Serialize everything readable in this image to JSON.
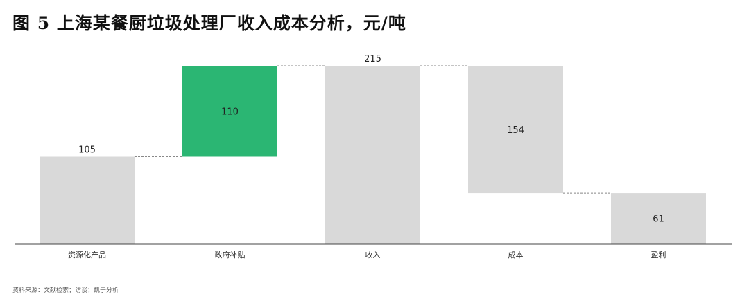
{
  "title": "图 5 上海某餐厨垃圾处理厂收入成本分析，元/吨",
  "source": "资料来源：文献检索；访谈；凯于分析",
  "chart_data": {
    "type": "waterfall",
    "categories": [
      "资源化产品",
      "政府补贴",
      "收入",
      "成本",
      "盈利"
    ],
    "values": [
      105,
      110,
      215,
      154,
      61
    ],
    "bars": [
      {
        "start": 0,
        "end": 105,
        "label": "105",
        "label_pos": "above",
        "color": "#d9d9d9"
      },
      {
        "start": 105,
        "end": 215,
        "label": "110",
        "label_pos": "inside",
        "color": "#2bb673"
      },
      {
        "start": 0,
        "end": 215,
        "label": "215",
        "label_pos": "above",
        "color": "#d9d9d9"
      },
      {
        "start": 61,
        "end": 215,
        "label": "154",
        "label_pos": "inside",
        "color": "#d9d9d9"
      },
      {
        "start": 0,
        "end": 61,
        "label": "61",
        "label_pos": "inside",
        "color": "#d9d9d9"
      }
    ],
    "ylim": [
      0,
      215
    ],
    "grid": false
  }
}
